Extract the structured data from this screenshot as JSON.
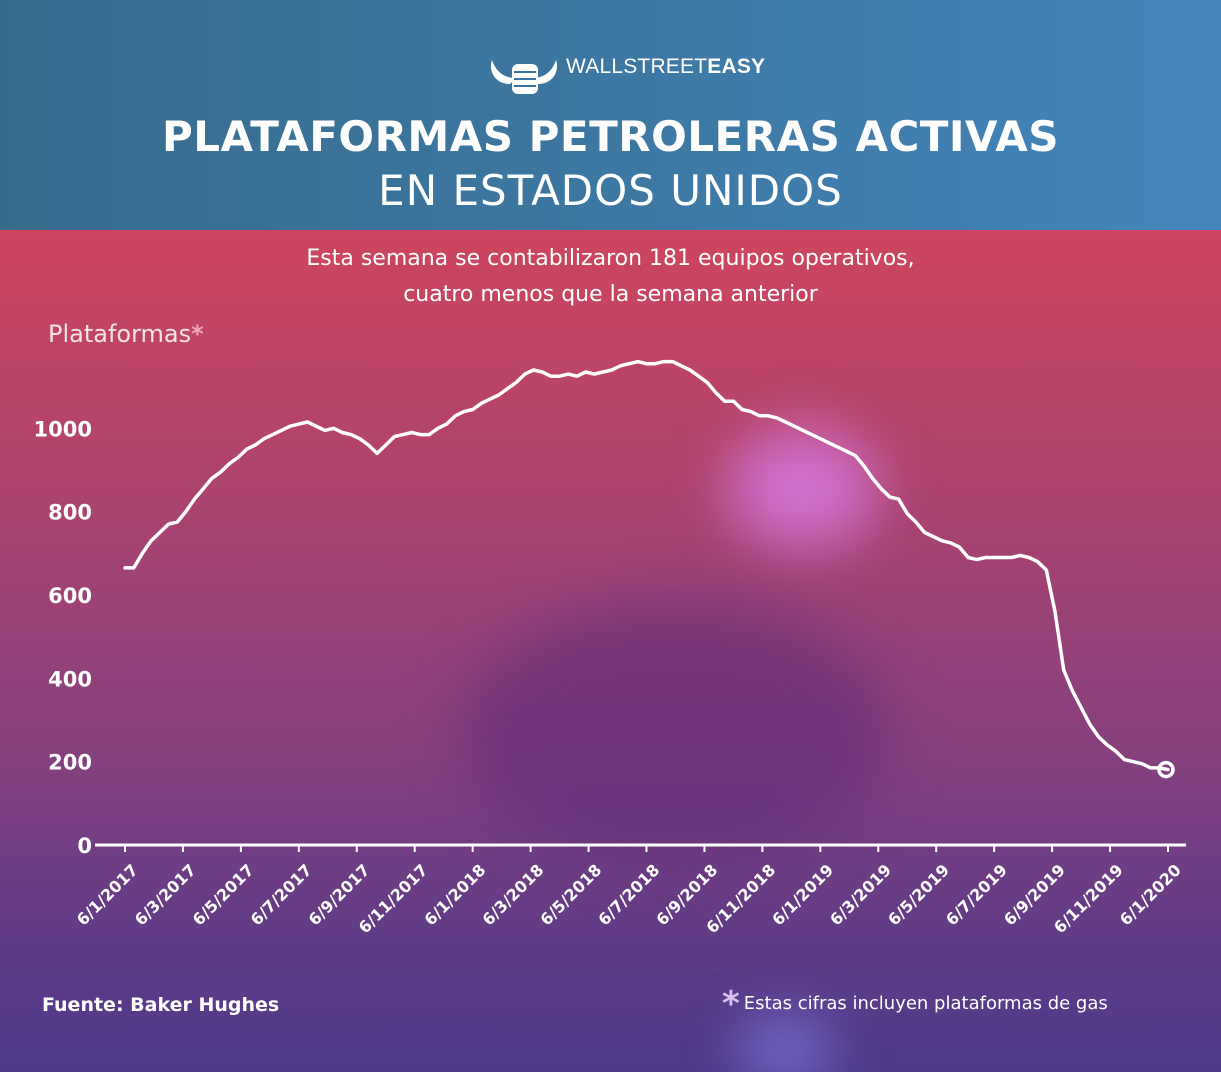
{
  "brand": {
    "light": "WALLSTREET",
    "bold": "EASY"
  },
  "header": {
    "title": "PLATAFORMAS PETROLERAS ACTIVAS",
    "subtitle": "EN ESTADOS UNIDOS"
  },
  "description": {
    "line1": "Esta semana se contabilizaron 181 equipos operativos,",
    "line2": "cuatro menos que la semana anterior"
  },
  "footer": {
    "source": "Fuente: Baker Hughes",
    "note": "Estas cifras incluyen plataformas de gas",
    "asterisk": "*"
  },
  "chart_data": {
    "type": "line",
    "ylabel": "Plataformas",
    "ylim": [
      0,
      1200
    ],
    "yticks": [
      0,
      200,
      400,
      600,
      800,
      1000
    ],
    "grid": false,
    "x_tick_labels": [
      "6/1/2017",
      "6/3/2017",
      "6/5/2017",
      "6/7/2017",
      "6/9/2017",
      "6/11/2017",
      "6/1/2018",
      "6/3/2018",
      "6/5/2018",
      "6/7/2018",
      "6/9/2018",
      "6/11/2018",
      "6/1/2019",
      "6/3/2019",
      "6/5/2019",
      "6/7/2019",
      "6/9/2019",
      "6/11/2019",
      "6/1/2020"
    ],
    "values": [
      665,
      665,
      700,
      730,
      750,
      770,
      775,
      800,
      830,
      855,
      880,
      895,
      915,
      930,
      950,
      960,
      975,
      985,
      995,
      1005,
      1010,
      1015,
      1005,
      995,
      1000,
      990,
      985,
      975,
      960,
      940,
      960,
      980,
      985,
      990,
      985,
      985,
      1000,
      1010,
      1030,
      1040,
      1045,
      1060,
      1070,
      1080,
      1095,
      1110,
      1130,
      1140,
      1135,
      1125,
      1125,
      1130,
      1125,
      1135,
      1130,
      1135,
      1140,
      1150,
      1155,
      1160,
      1155,
      1155,
      1160,
      1160,
      1150,
      1140,
      1125,
      1110,
      1085,
      1065,
      1065,
      1045,
      1040,
      1030,
      1030,
      1025,
      1015,
      1005,
      995,
      985,
      975,
      965,
      955,
      945,
      935,
      910,
      880,
      855,
      835,
      830,
      795,
      775,
      750,
      740,
      730,
      725,
      715,
      690,
      685,
      690,
      690,
      690,
      690,
      695,
      690,
      680,
      660,
      560,
      420,
      370,
      330,
      290,
      260,
      240,
      225,
      205,
      200,
      195,
      185,
      185,
      181
    ],
    "last_point": {
      "x": "6/1/2020",
      "y": 181
    }
  },
  "colors": {
    "line": "#ffffff",
    "header_bg": "#3d79a4",
    "asterisk": "#f2a3bd"
  },
  "icons": {
    "logo": "bull-fist-icon",
    "marker": "circle-marker-icon"
  }
}
